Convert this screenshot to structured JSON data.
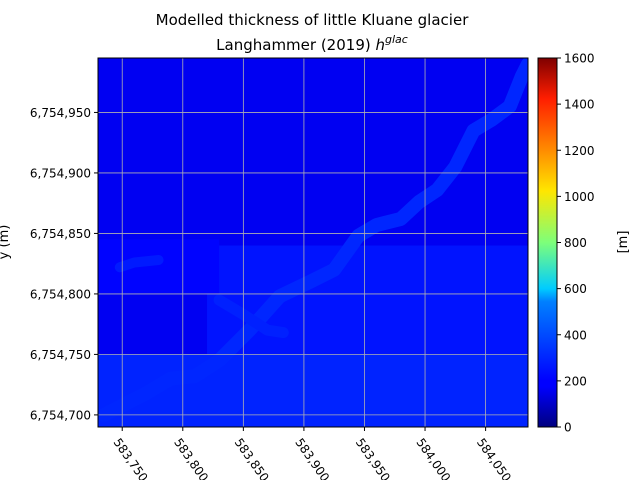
{
  "chart_data": {
    "type": "heatmap",
    "title": "Modelled thickness of little Kluane glacier",
    "subtitle_prefix": "Langhammer (2019) ",
    "subtitle_symbol": "h",
    "subtitle_superscript": "glac",
    "ylabel": "y (m)",
    "xlabel": "",
    "xlim": [
      583730,
      584085
    ],
    "ylim": [
      6754690,
      6754995
    ],
    "xticks": [
      583750,
      583800,
      583850,
      583900,
      583950,
      584000,
      584050
    ],
    "xtick_labels": [
      "583,750",
      "583,800",
      "583,850",
      "583,900",
      "583,950",
      "584,000",
      "584,050"
    ],
    "yticks": [
      6754700,
      6754750,
      6754800,
      6754850,
      6754900,
      6754950
    ],
    "ytick_labels": [
      "6,754,700",
      "6,754,750",
      "6,754,800",
      "6,754,850",
      "6,754,900",
      "6,754,950"
    ],
    "grid": true,
    "colorbar": {
      "label": "[m]",
      "min": 0,
      "max": 1600,
      "ticks": [
        0,
        200,
        400,
        600,
        800,
        1000,
        1200,
        1400,
        1600
      ],
      "colormap": "jet"
    },
    "field": {
      "background_thickness_m": 185,
      "regions": [
        {
          "x": [
            583730,
            584085
          ],
          "y": [
            6754690,
            6754995
          ],
          "value_m": 180
        },
        {
          "x": [
            583730,
            584085
          ],
          "y": [
            6754690,
            6754750
          ],
          "value_m": 255
        },
        {
          "x": [
            583820,
            584085
          ],
          "y": [
            6754750,
            6754840
          ],
          "value_m": 230
        },
        {
          "x": [
            583730,
            583830
          ],
          "y": [
            6754800,
            6754845
          ],
          "value_m": 205
        }
      ],
      "flowline": {
        "value_m": 260,
        "points": [
          [
            583735,
            6754700
          ],
          [
            583770,
            6754718
          ],
          [
            583790,
            6754730
          ],
          [
            583810,
            6754732
          ],
          [
            583830,
            6754745
          ],
          [
            583855,
            6754770
          ],
          [
            583880,
            6754798
          ],
          [
            583905,
            6754810
          ],
          [
            583925,
            6754820
          ],
          [
            583945,
            6754848
          ],
          [
            583960,
            6754857
          ],
          [
            583980,
            6754862
          ],
          [
            583995,
            6754876
          ],
          [
            584010,
            6754886
          ],
          [
            584025,
            6754905
          ],
          [
            584040,
            6754935
          ],
          [
            584055,
            6754944
          ],
          [
            584070,
            6754955
          ],
          [
            584080,
            6754980
          ],
          [
            584085,
            6754990
          ]
        ]
      },
      "branch_upper": {
        "value_m": 240,
        "points": [
          [
            583748,
            6754822
          ],
          [
            583760,
            6754826
          ],
          [
            583780,
            6754828
          ]
        ]
      },
      "branch_lower": {
        "value_m": 250,
        "points": [
          [
            583830,
            6754795
          ],
          [
            583850,
            6754783
          ],
          [
            583870,
            6754770
          ],
          [
            583883,
            6754768
          ]
        ]
      }
    }
  }
}
